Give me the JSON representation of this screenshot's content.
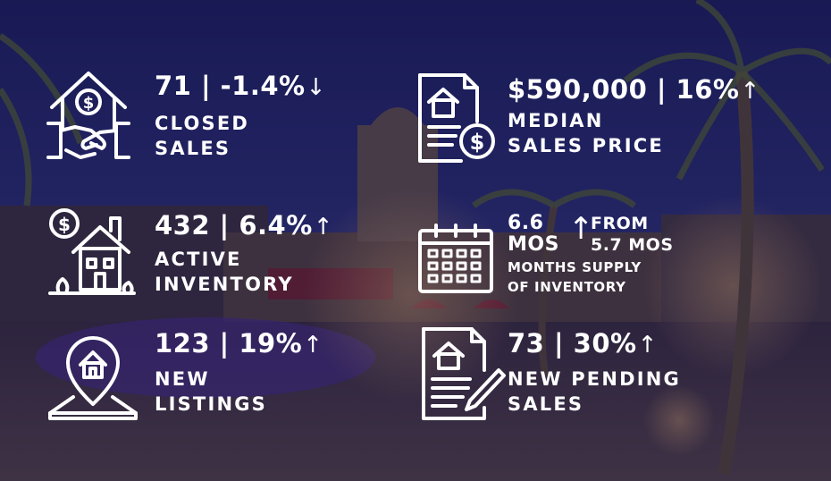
{
  "stats": {
    "closed_sales": {
      "value": "71 | -1.4%",
      "arrow": "↓",
      "label_line1": "CLOSED",
      "label_line2": "SALES",
      "icon": "house-handshake-icon"
    },
    "median_price": {
      "value": "$590,000 | 16%",
      "arrow": "↑",
      "label_line1": "MEDIAN",
      "label_line2": "SALES PRICE",
      "icon": "house-document-dollar-icon"
    },
    "active_inventory": {
      "value": "432 | 6.4%",
      "arrow": "↑",
      "label_line1": "ACTIVE",
      "label_line2": "INVENTORY",
      "icon": "house-dollar-icon"
    },
    "months_supply": {
      "value_line1": "6.6",
      "value_line2": "MOS",
      "arrow": "↑",
      "from_line1": "FROM",
      "from_line2": "5.7 MOS",
      "label_line1": "MONTHS SUPPLY",
      "label_line2": "OF INVENTORY",
      "icon": "calendar-icon"
    },
    "new_listings": {
      "value": "123 | 19%",
      "arrow": "↑",
      "label_line1": "NEW",
      "label_line2": "LISTINGS",
      "icon": "house-location-pin-icon"
    },
    "new_pending": {
      "value": "73 | 30%",
      "arrow": "↑",
      "label_line1": "NEW PENDING",
      "label_line2": "SALES",
      "icon": "house-contract-pen-icon"
    }
  },
  "colors": {
    "overlay": "#1c1a4a",
    "text": "#ffffff"
  }
}
